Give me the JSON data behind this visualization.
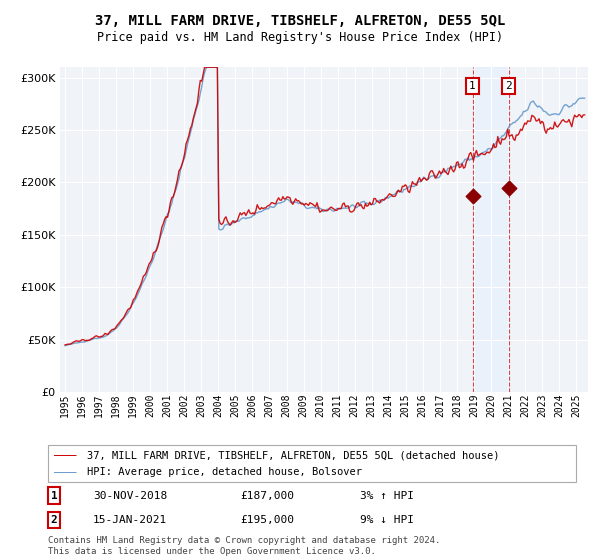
{
  "title": "37, MILL FARM DRIVE, TIBSHELF, ALFRETON, DE55 5QL",
  "subtitle": "Price paid vs. HM Land Registry's House Price Index (HPI)",
  "legend_entry1": "37, MILL FARM DRIVE, TIBSHELF, ALFRETON, DE55 5QL (detached house)",
  "legend_entry2": "HPI: Average price, detached house, Bolsover",
  "annotation1_date": "30-NOV-2018",
  "annotation1_price": "£187,000",
  "annotation1_hpi": "3% ↑ HPI",
  "annotation2_date": "15-JAN-2021",
  "annotation2_price": "£195,000",
  "annotation2_hpi": "9% ↓ HPI",
  "footnote": "Contains HM Land Registry data © Crown copyright and database right 2024.\nThis data is licensed under the Open Government Licence v3.0.",
  "ylim": [
    0,
    310000
  ],
  "yticks": [
    0,
    50000,
    100000,
    150000,
    200000,
    250000,
    300000
  ],
  "background_color": "#ffffff",
  "plot_bg_color": "#f0f4f8",
  "grid_color": "#ffffff",
  "red_color": "#cc0000",
  "blue_color": "#6699cc",
  "shade_color": "#ddeeff",
  "ann1_x": 2018.92,
  "ann2_x": 2021.04,
  "ann1_y": 187000,
  "ann2_y": 195000,
  "xmin": 1994.7,
  "xmax": 2025.7
}
